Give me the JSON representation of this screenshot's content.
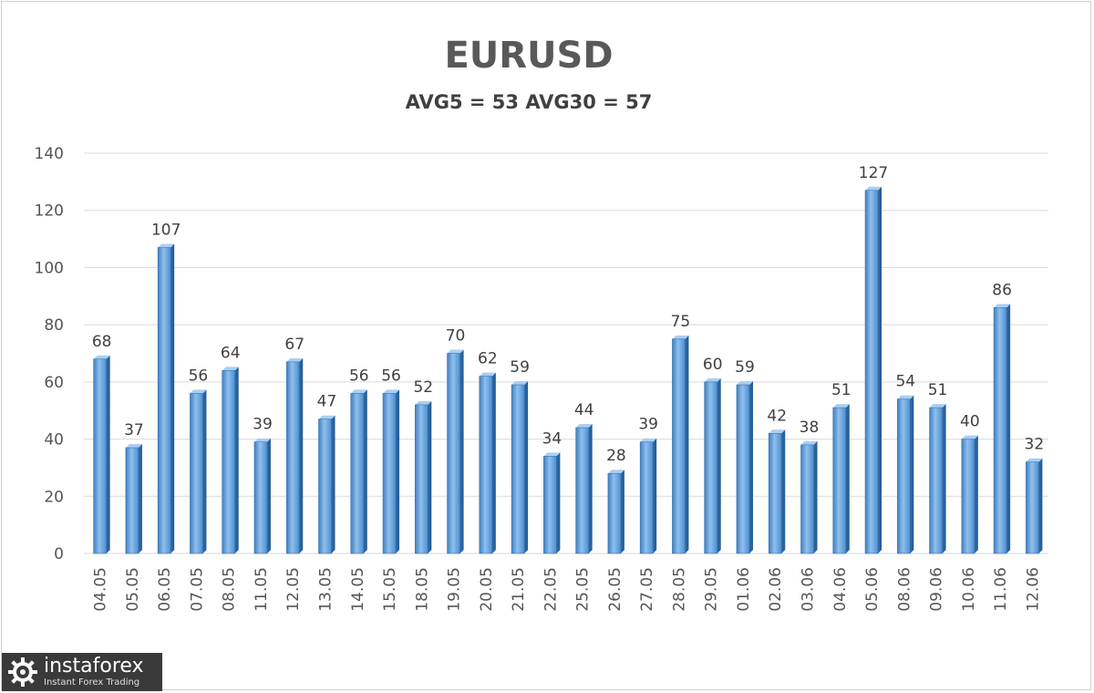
{
  "chart_data": {
    "type": "bar",
    "title": "EURUSD",
    "subtitle": "AVG5 = 53 AVG30 = 57",
    "categories": [
      "04.05",
      "05.05",
      "06.05",
      "07.05",
      "08.05",
      "11.05",
      "12.05",
      "13.05",
      "14.05",
      "15.05",
      "18.05",
      "19.05",
      "20.05",
      "21.05",
      "22.05",
      "25.05",
      "26.05",
      "27.05",
      "28.05",
      "29.05",
      "01.06",
      "02.06",
      "03.06",
      "04.06",
      "05.06",
      "08.06",
      "09.06",
      "10.06",
      "11.06",
      "12.06"
    ],
    "values": [
      68,
      37,
      107,
      56,
      64,
      39,
      67,
      47,
      56,
      56,
      52,
      70,
      62,
      59,
      34,
      44,
      28,
      39,
      75,
      60,
      59,
      42,
      38,
      51,
      127,
      54,
      51,
      40,
      86,
      32
    ],
    "ylim": [
      0,
      140
    ],
    "yticks": [
      0,
      20,
      40,
      60,
      80,
      100,
      120,
      140
    ],
    "grid": true,
    "legend": "none",
    "bar_color": "#5b9bd5",
    "grid_color": "#d9d9d9"
  },
  "watermark": {
    "name": "instaforex",
    "tagline": "Instant Forex Trading"
  }
}
